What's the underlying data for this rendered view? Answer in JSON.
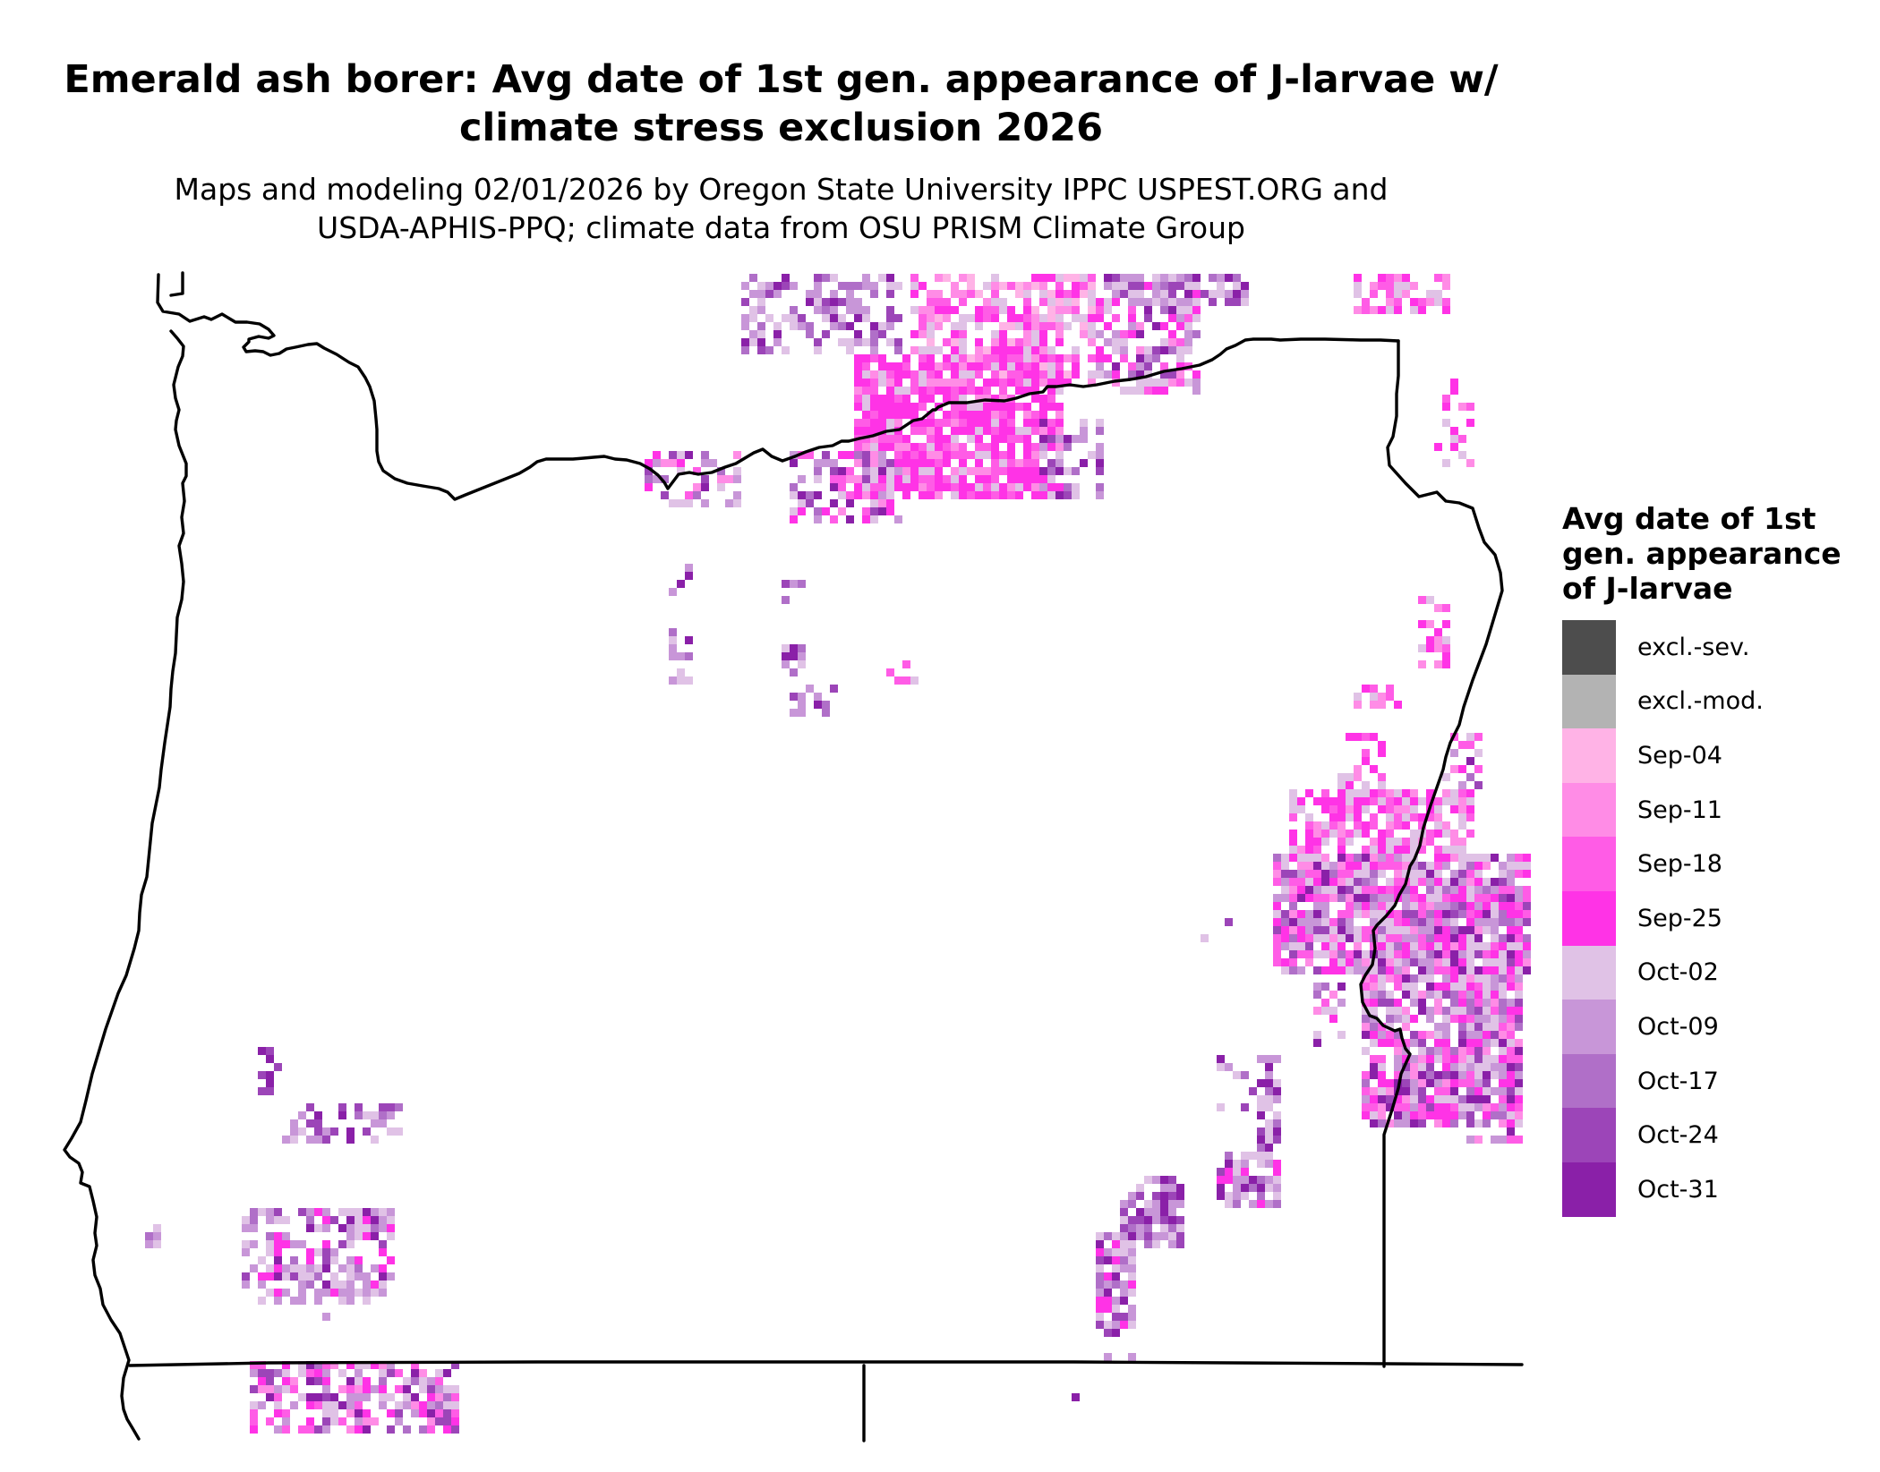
{
  "title": {
    "line1": "Emerald ash borer: Avg date of 1st gen. appearance of J-larvae w/",
    "line2": "climate stress exclusion 2026"
  },
  "subtitle": {
    "line1": "Maps and modeling 02/01/2026 by Oregon State University IPPC USPEST.ORG and",
    "line2": "USDA-APHIS-PPQ; climate data from OSU PRISM Climate Group"
  },
  "legend": {
    "title_lines": [
      "Avg date of 1st",
      "gen. appearance",
      "of J-larvae"
    ],
    "items": [
      {
        "label": "excl.-sev.",
        "color": "#4d4d4d"
      },
      {
        "label": "excl.-mod.",
        "color": "#b3b3b3"
      },
      {
        "label": "Sep-04",
        "color": "#ffb3e6"
      },
      {
        "label": "Sep-11",
        "color": "#ff8ce6"
      },
      {
        "label": "Sep-18",
        "color": "#ff5ce6"
      },
      {
        "label": "Sep-25",
        "color": "#ff33e6"
      },
      {
        "label": "Oct-02",
        "color": "#e0c2e6"
      },
      {
        "label": "Oct-09",
        "color": "#c896d8"
      },
      {
        "label": "Oct-17",
        "color": "#b06fc8"
      },
      {
        "label": "Oct-24",
        "color": "#9c45b8"
      },
      {
        "label": "Oct-31",
        "color": "#8a20a8"
      }
    ]
  },
  "map": {
    "border_color": "#000000"
  }
}
